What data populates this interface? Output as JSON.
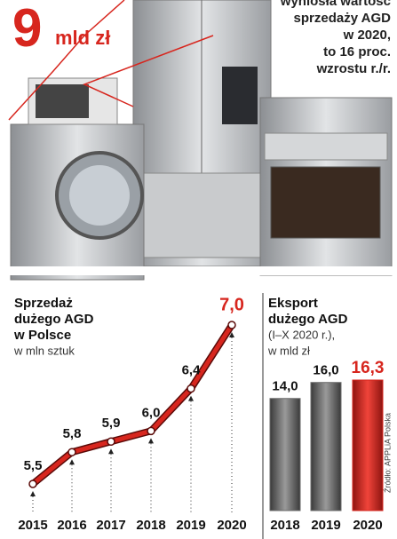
{
  "header": {
    "big": "9",
    "unit": "mld zł",
    "lines": [
      "wyniosła wartość",
      "sprzedaży AGD",
      "w 2020,",
      "to  16 proc.",
      "wzrostu r./r."
    ]
  },
  "chart_data": [
    {
      "type": "line",
      "title": [
        "Sprzedaż",
        "dużego AGD",
        "w Polsce"
      ],
      "subtitle": [
        "w mln sztuk"
      ],
      "categories": [
        "2015",
        "2016",
        "2017",
        "2018",
        "2019",
        "2020"
      ],
      "values": [
        5.5,
        5.8,
        5.9,
        6.0,
        6.4,
        7.0
      ],
      "value_labels": [
        "5,5",
        "5,8",
        "5,9",
        "6,0",
        "6,4",
        "7,0"
      ],
      "color": "#d7261e"
    },
    {
      "type": "bar",
      "title": [
        "Eksport",
        "dużego AGD"
      ],
      "subtitle": [
        "(I–X 2020 r.),",
        "w mld zł"
      ],
      "categories": [
        "2018",
        "2019",
        "2020"
      ],
      "values": [
        14.0,
        16.0,
        16.3
      ],
      "value_labels": [
        "14,0",
        "16,0",
        "16,3"
      ],
      "colors": [
        "#6b6b6b",
        "#6b6b6b",
        "#d7261e"
      ]
    }
  ],
  "source": "Źródło: APPLiA Polska"
}
